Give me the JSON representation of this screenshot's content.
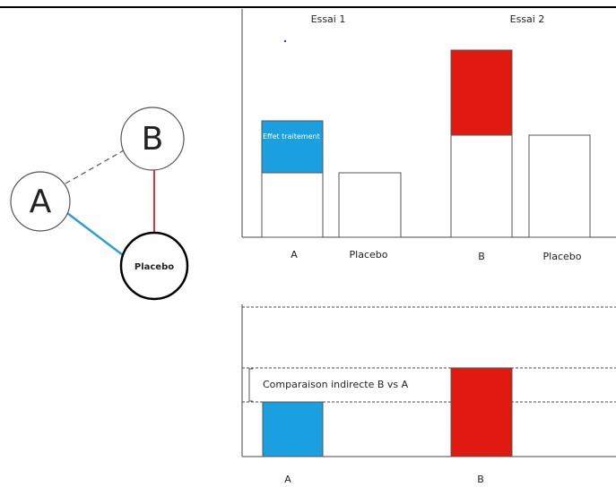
{
  "network": {
    "nodes": [
      {
        "label": "A"
      },
      {
        "label": "B"
      },
      {
        "label": "Placebo"
      }
    ]
  },
  "top_chart": {
    "trials": [
      "Essai 1",
      "Essai 2"
    ],
    "bar_labels": [
      "A",
      "Placebo",
      "B",
      "Placebo"
    ],
    "annotation": "Effet traitement"
  },
  "bottom_chart": {
    "bar_labels": [
      "A",
      "B"
    ],
    "annotation": "Comparaison indirecte B vs A"
  }
}
